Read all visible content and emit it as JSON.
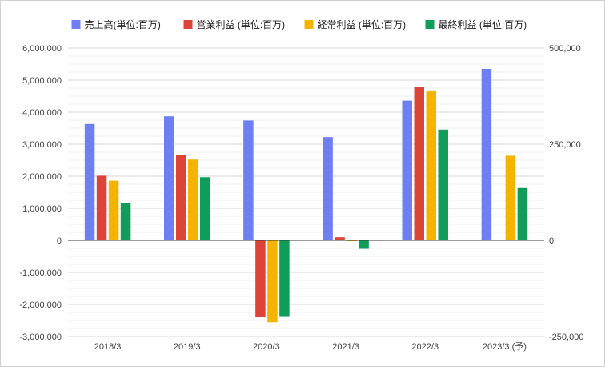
{
  "chart_data": {
    "type": "bar",
    "categories": [
      "2018/3",
      "2019/3",
      "2020/3",
      "2021/3",
      "2022/3",
      "2023/3 (予)"
    ],
    "series": [
      {
        "name": "売上高(単位:百万)",
        "color": "#6d7ff1",
        "axis": "left",
        "values": [
          3630000,
          3870000,
          3740000,
          3220000,
          4360000,
          5350000
        ]
      },
      {
        "name": "営業利益 (単位:百万)",
        "color": "#db4437",
        "axis": "right",
        "values": [
          168000,
          222000,
          -200000,
          8000,
          400000,
          null
        ]
      },
      {
        "name": "経常利益 (単位:百万)",
        "color": "#f4b400",
        "axis": "right",
        "values": [
          155000,
          210000,
          -213000,
          -2000,
          388000,
          220000
        ]
      },
      {
        "name": "最終利益 (単位:百万)",
        "color": "#0f9d58",
        "axis": "right",
        "values": [
          98000,
          164000,
          -197000,
          -22000,
          288000,
          138000
        ]
      }
    ],
    "left_axis": {
      "ylim": [
        -3000000,
        6000000
      ],
      "ticks": [
        6000000,
        5000000,
        4000000,
        3000000,
        2000000,
        1000000,
        0,
        -1000000,
        -2000000,
        -3000000
      ],
      "tick_labels": [
        "6,000,000",
        "5,000,000",
        "4,000,000",
        "3,000,000",
        "2,000,000",
        "1,000,000",
        "0",
        "-1,000,000",
        "-2,000,000",
        "-3,000,000"
      ]
    },
    "right_axis": {
      "ylim": [
        -250000,
        500000
      ],
      "ticks": [
        500000,
        250000,
        0,
        -250000
      ],
      "tick_labels": [
        "500,000",
        "250,000",
        "0",
        "-250,000"
      ]
    },
    "grid": true,
    "legend_position": "top"
  }
}
